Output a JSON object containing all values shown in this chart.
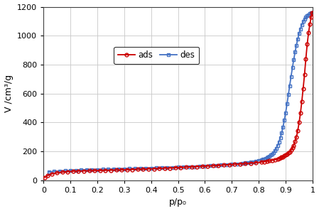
{
  "title": "",
  "xlabel": "p/p₀",
  "ylabel": "V /cm³/g",
  "xlim": [
    0,
    1.0
  ],
  "ylim": [
    0,
    1200
  ],
  "yticks": [
    0,
    200,
    400,
    600,
    800,
    1000,
    1200
  ],
  "xticks": [
    0,
    0.1,
    0.2,
    0.3,
    0.4,
    0.5,
    0.6,
    0.7,
    0.8,
    0.9,
    1.0
  ],
  "ads_color": "#cc0000",
  "des_color": "#4472c4",
  "background": "#ffffff",
  "grid_color": "#c8c8c8",
  "ads_x": [
    0.005,
    0.015,
    0.03,
    0.05,
    0.07,
    0.09,
    0.11,
    0.13,
    0.15,
    0.17,
    0.19,
    0.21,
    0.23,
    0.25,
    0.27,
    0.29,
    0.31,
    0.33,
    0.35,
    0.37,
    0.39,
    0.41,
    0.43,
    0.45,
    0.47,
    0.49,
    0.51,
    0.53,
    0.55,
    0.57,
    0.59,
    0.61,
    0.63,
    0.65,
    0.67,
    0.69,
    0.71,
    0.73,
    0.75,
    0.77,
    0.79,
    0.81,
    0.82,
    0.83,
    0.84,
    0.85,
    0.86,
    0.87,
    0.875,
    0.88,
    0.885,
    0.89,
    0.895,
    0.9,
    0.905,
    0.91,
    0.915,
    0.92,
    0.925,
    0.93,
    0.935,
    0.94,
    0.945,
    0.95,
    0.955,
    0.96,
    0.965,
    0.97,
    0.975,
    0.98,
    0.985,
    0.99,
    0.995,
    0.998
  ],
  "ads_y": [
    20,
    33,
    44,
    52,
    57,
    60,
    63,
    64,
    65,
    66,
    67,
    68,
    69,
    70,
    71,
    72,
    73,
    75,
    76,
    77,
    79,
    80,
    82,
    84,
    85,
    87,
    89,
    91,
    93,
    95,
    97,
    99,
    101,
    103,
    106,
    108,
    111,
    113,
    116,
    119,
    122,
    126,
    129,
    132,
    135,
    139,
    143,
    148,
    151,
    155,
    159,
    163,
    169,
    174,
    181,
    189,
    198,
    210,
    224,
    242,
    268,
    300,
    345,
    400,
    465,
    545,
    635,
    730,
    840,
    940,
    1020,
    1080,
    1130,
    1160
  ],
  "des_x": [
    0.998,
    0.995,
    0.99,
    0.985,
    0.98,
    0.975,
    0.97,
    0.965,
    0.96,
    0.955,
    0.95,
    0.945,
    0.94,
    0.935,
    0.93,
    0.925,
    0.92,
    0.915,
    0.91,
    0.905,
    0.9,
    0.895,
    0.89,
    0.885,
    0.88,
    0.875,
    0.87,
    0.865,
    0.86,
    0.855,
    0.85,
    0.845,
    0.84,
    0.835,
    0.83,
    0.825,
    0.82,
    0.815,
    0.81,
    0.8,
    0.79,
    0.78,
    0.77,
    0.76,
    0.75,
    0.74,
    0.72,
    0.7,
    0.68,
    0.66,
    0.64,
    0.62,
    0.6,
    0.58,
    0.56,
    0.54,
    0.52,
    0.5,
    0.48,
    0.46,
    0.44,
    0.42,
    0.4,
    0.38,
    0.36,
    0.34,
    0.32,
    0.3,
    0.28,
    0.26,
    0.24,
    0.22,
    0.2,
    0.18,
    0.16,
    0.14,
    0.12,
    0.1,
    0.08,
    0.06,
    0.04,
    0.02
  ],
  "des_y": [
    1160,
    1158,
    1152,
    1145,
    1138,
    1128,
    1115,
    1098,
    1075,
    1048,
    1015,
    978,
    935,
    888,
    835,
    778,
    718,
    655,
    592,
    528,
    468,
    415,
    368,
    328,
    294,
    265,
    242,
    222,
    206,
    193,
    183,
    175,
    168,
    163,
    158,
    153,
    149,
    146,
    143,
    138,
    133,
    129,
    126,
    123,
    120,
    118,
    114,
    111,
    108,
    106,
    103,
    101,
    99,
    97,
    95,
    94,
    92,
    91,
    89,
    88,
    87,
    86,
    85,
    84,
    83,
    82,
    81,
    80,
    79,
    78,
    77,
    76,
    75,
    74,
    73,
    72,
    70,
    68,
    66,
    64,
    62,
    58
  ]
}
